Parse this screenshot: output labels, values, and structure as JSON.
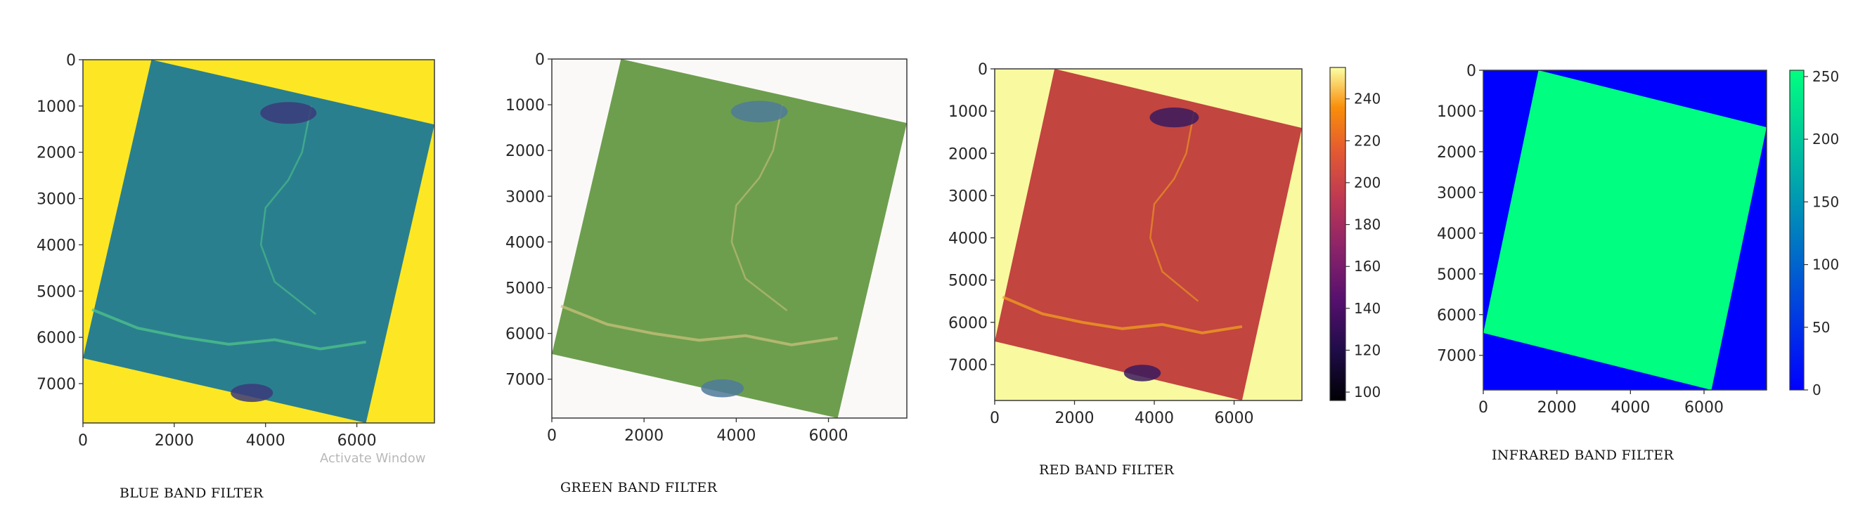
{
  "captions": [
    "BLUE BAND FILTER",
    "GREEN BAND FILTER",
    "RED BAND FILTER",
    "INFRARED BAND FILTER"
  ],
  "watermark": "Activate Window",
  "chart_data": [
    {
      "type": "heatmap",
      "caption": "BLUE BAND FILTER",
      "colormap": "viridis",
      "xlim": [
        0,
        7700
      ],
      "ylim": [
        7850,
        0
      ],
      "xticks": [
        0,
        2000,
        4000,
        6000
      ],
      "yticks": [
        0,
        1000,
        2000,
        3000,
        4000,
        5000,
        6000,
        7000
      ],
      "background_color": "#fde725",
      "scene_color": "#2a7f8e",
      "feature_color": "#4fc489",
      "colorbar": null
    },
    {
      "type": "heatmap",
      "caption": "GREEN BAND FILTER",
      "colormap": "gist_earth",
      "xlim": [
        0,
        7700
      ],
      "ylim": [
        7850,
        0
      ],
      "xticks": [
        0,
        2000,
        4000,
        6000
      ],
      "yticks": [
        0,
        1000,
        2000,
        3000,
        4000,
        5000,
        6000,
        7000
      ],
      "background_color": "#fbf9f8",
      "scene_color": "#6d9e4e",
      "feature_color": "#c9c07a",
      "colorbar": null
    },
    {
      "type": "heatmap",
      "caption": "RED BAND FILTER",
      "colormap": "inferno",
      "xlim": [
        0,
        7700
      ],
      "ylim": [
        7850,
        0
      ],
      "xticks": [
        0,
        2000,
        4000,
        6000
      ],
      "yticks": [
        0,
        1000,
        2000,
        3000,
        4000,
        5000,
        6000,
        7000
      ],
      "background_color": "#f9f9a0",
      "scene_color": "#c2453f",
      "feature_color": "#f0a020",
      "colorbar": {
        "ticks": [
          100,
          120,
          140,
          160,
          180,
          200,
          220,
          240
        ],
        "range": [
          96,
          255
        ]
      }
    },
    {
      "type": "heatmap",
      "caption": "INFRARED BAND FILTER",
      "colormap": "winter",
      "xlim": [
        0,
        7700
      ],
      "ylim": [
        7850,
        0
      ],
      "xticks": [
        0,
        2000,
        4000,
        6000
      ],
      "yticks": [
        0,
        1000,
        2000,
        3000,
        4000,
        5000,
        6000,
        7000
      ],
      "background_color": "#0000ff",
      "scene_color": "#00ff80",
      "feature_color": "#00ff80",
      "colorbar": {
        "ticks": [
          0,
          50,
          100,
          150,
          200,
          250
        ],
        "range": [
          0,
          255
        ]
      }
    }
  ]
}
